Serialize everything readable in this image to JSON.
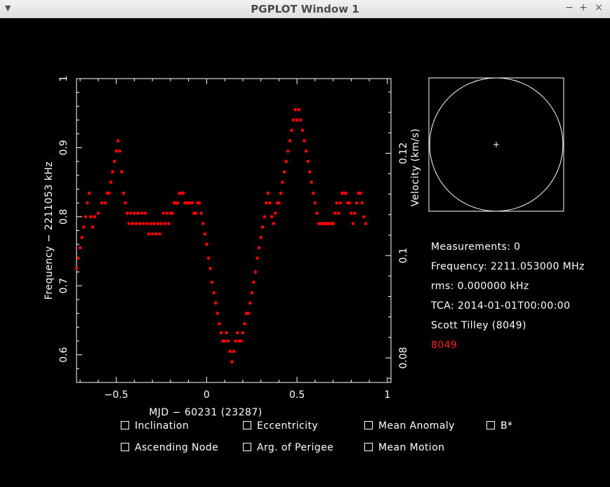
{
  "window": {
    "title": "PGPLOT Window 1",
    "menu_icon": "chevron-down-icon",
    "controls": [
      "−",
      "+",
      "×"
    ]
  },
  "colors": {
    "background": "#000000",
    "foreground": "#ffffff",
    "data": "#ff0000"
  },
  "chart_data": {
    "type": "scatter",
    "xlabel": "MJD − 60231 (23287)",
    "ylabel": "Frequency − 2211053 kHz",
    "y2label": "Velocity (km/s)",
    "xlim": [
      -0.72,
      1.02
    ],
    "ylim": [
      0.56,
      1.0
    ],
    "y2lim": [
      0.0752,
      0.1346
    ],
    "x_ticks": [
      {
        "v": -0.5,
        "label": "−0.5"
      },
      {
        "v": 0,
        "label": "0"
      },
      {
        "v": 0.5,
        "label": "0.5"
      },
      {
        "v": 1,
        "label": "1"
      }
    ],
    "y_ticks": [
      {
        "v": 0.6,
        "label": "0.6"
      },
      {
        "v": 0.7,
        "label": "0.7"
      },
      {
        "v": 0.8,
        "label": "0.8"
      },
      {
        "v": 0.9,
        "label": "0.9"
      },
      {
        "v": 1.0,
        "label": "1"
      }
    ],
    "y2_ticks": [
      {
        "v": 0.08,
        "label": "0.08"
      },
      {
        "v": 0.1,
        "label": "0.1"
      },
      {
        "v": 0.12,
        "label": "0.12"
      }
    ],
    "series": [
      {
        "color": "#ff0000",
        "points": [
          [
            -0.72,
            0.725
          ],
          [
            -0.71,
            0.74
          ],
          [
            -0.7,
            0.755
          ],
          [
            -0.69,
            0.77
          ],
          [
            -0.68,
            0.785
          ],
          [
            -0.67,
            0.8
          ],
          [
            -0.66,
            0.82
          ],
          [
            -0.65,
            0.834
          ],
          [
            -0.64,
            0.8
          ],
          [
            -0.63,
            0.785
          ],
          [
            -0.62,
            0.8
          ],
          [
            -0.6,
            0.805
          ],
          [
            -0.58,
            0.82
          ],
          [
            -0.56,
            0.82
          ],
          [
            -0.55,
            0.834
          ],
          [
            -0.54,
            0.834
          ],
          [
            -0.53,
            0.85
          ],
          [
            -0.52,
            0.865
          ],
          [
            -0.51,
            0.88
          ],
          [
            -0.5,
            0.895
          ],
          [
            -0.49,
            0.91
          ],
          [
            -0.48,
            0.895
          ],
          [
            -0.47,
            0.865
          ],
          [
            -0.46,
            0.834
          ],
          [
            -0.45,
            0.82
          ],
          [
            -0.44,
            0.805
          ],
          [
            -0.43,
            0.79
          ],
          [
            -0.42,
            0.805
          ],
          [
            -0.41,
            0.79
          ],
          [
            -0.4,
            0.805
          ],
          [
            -0.39,
            0.79
          ],
          [
            -0.38,
            0.805
          ],
          [
            -0.37,
            0.79
          ],
          [
            -0.36,
            0.805
          ],
          [
            -0.35,
            0.79
          ],
          [
            -0.34,
            0.805
          ],
          [
            -0.33,
            0.79
          ],
          [
            -0.32,
            0.775
          ],
          [
            -0.31,
            0.79
          ],
          [
            -0.3,
            0.775
          ],
          [
            -0.29,
            0.79
          ],
          [
            -0.28,
            0.775
          ],
          [
            -0.27,
            0.79
          ],
          [
            -0.26,
            0.775
          ],
          [
            -0.25,
            0.79
          ],
          [
            -0.24,
            0.805
          ],
          [
            -0.23,
            0.79
          ],
          [
            -0.22,
            0.805
          ],
          [
            -0.21,
            0.79
          ],
          [
            -0.2,
            0.805
          ],
          [
            -0.19,
            0.805
          ],
          [
            -0.18,
            0.82
          ],
          [
            -0.17,
            0.82
          ],
          [
            -0.16,
            0.82
          ],
          [
            -0.15,
            0.834
          ],
          [
            -0.14,
            0.834
          ],
          [
            -0.13,
            0.834
          ],
          [
            -0.12,
            0.82
          ],
          [
            -0.11,
            0.82
          ],
          [
            -0.1,
            0.82
          ],
          [
            -0.09,
            0.82
          ],
          [
            -0.08,
            0.82
          ],
          [
            -0.07,
            0.805
          ],
          [
            -0.06,
            0.805
          ],
          [
            -0.05,
            0.82
          ],
          [
            -0.04,
            0.82
          ],
          [
            -0.03,
            0.805
          ],
          [
            -0.02,
            0.79
          ],
          [
            -0.01,
            0.775
          ],
          [
            0.0,
            0.76
          ],
          [
            0.01,
            0.74
          ],
          [
            0.02,
            0.725
          ],
          [
            0.03,
            0.705
          ],
          [
            0.04,
            0.69
          ],
          [
            0.05,
            0.675
          ],
          [
            0.06,
            0.66
          ],
          [
            0.07,
            0.645
          ],
          [
            0.08,
            0.632
          ],
          [
            0.09,
            0.62
          ],
          [
            0.1,
            0.62
          ],
          [
            0.11,
            0.632
          ],
          [
            0.12,
            0.62
          ],
          [
            0.13,
            0.605
          ],
          [
            0.14,
            0.59
          ],
          [
            0.15,
            0.605
          ],
          [
            0.16,
            0.62
          ],
          [
            0.17,
            0.632
          ],
          [
            0.18,
            0.62
          ],
          [
            0.19,
            0.62
          ],
          [
            0.2,
            0.632
          ],
          [
            0.21,
            0.645
          ],
          [
            0.22,
            0.66
          ],
          [
            0.23,
            0.66
          ],
          [
            0.24,
            0.675
          ],
          [
            0.25,
            0.69
          ],
          [
            0.26,
            0.705
          ],
          [
            0.27,
            0.72
          ],
          [
            0.28,
            0.74
          ],
          [
            0.29,
            0.755
          ],
          [
            0.3,
            0.77
          ],
          [
            0.31,
            0.785
          ],
          [
            0.32,
            0.8
          ],
          [
            0.33,
            0.82
          ],
          [
            0.34,
            0.834
          ],
          [
            0.35,
            0.82
          ],
          [
            0.36,
            0.8
          ],
          [
            0.37,
            0.79
          ],
          [
            0.38,
            0.805
          ],
          [
            0.39,
            0.82
          ],
          [
            0.4,
            0.82
          ],
          [
            0.41,
            0.834
          ],
          [
            0.42,
            0.85
          ],
          [
            0.43,
            0.865
          ],
          [
            0.44,
            0.88
          ],
          [
            0.45,
            0.895
          ],
          [
            0.46,
            0.91
          ],
          [
            0.47,
            0.925
          ],
          [
            0.48,
            0.94
          ],
          [
            0.49,
            0.955
          ],
          [
            0.5,
            0.94
          ],
          [
            0.51,
            0.955
          ],
          [
            0.52,
            0.94
          ],
          [
            0.53,
            0.925
          ],
          [
            0.54,
            0.91
          ],
          [
            0.55,
            0.895
          ],
          [
            0.56,
            0.88
          ],
          [
            0.57,
            0.865
          ],
          [
            0.58,
            0.85
          ],
          [
            0.59,
            0.834
          ],
          [
            0.6,
            0.82
          ],
          [
            0.61,
            0.805
          ],
          [
            0.62,
            0.79
          ],
          [
            0.63,
            0.79
          ],
          [
            0.64,
            0.79
          ],
          [
            0.65,
            0.79
          ],
          [
            0.66,
            0.79
          ],
          [
            0.67,
            0.79
          ],
          [
            0.68,
            0.79
          ],
          [
            0.69,
            0.79
          ],
          [
            0.7,
            0.79
          ],
          [
            0.71,
            0.805
          ],
          [
            0.72,
            0.82
          ],
          [
            0.73,
            0.805
          ],
          [
            0.74,
            0.82
          ],
          [
            0.75,
            0.834
          ],
          [
            0.76,
            0.834
          ],
          [
            0.77,
            0.834
          ],
          [
            0.78,
            0.82
          ],
          [
            0.79,
            0.82
          ],
          [
            0.8,
            0.805
          ],
          [
            0.81,
            0.79
          ],
          [
            0.82,
            0.805
          ],
          [
            0.83,
            0.82
          ],
          [
            0.84,
            0.834
          ],
          [
            0.85,
            0.834
          ],
          [
            0.86,
            0.82
          ],
          [
            0.87,
            0.8
          ],
          [
            0.88,
            0.79
          ]
        ]
      }
    ]
  },
  "axis_labels": {
    "x": "MJD − 60231 (23287)",
    "y_left": "Frequency − 2211053 kHz",
    "y_right": "Velocity (km/s)"
  },
  "info": {
    "measurements": "Measurements: 0",
    "frequency": "Frequency: 2211.053000 MHz",
    "rms": "rms: 0.000000 kHz",
    "tca": "TCA: 2014-01-01T00:00:00",
    "satellite": "Scott Tilley (8049)",
    "site": "8049"
  },
  "checkboxes": [
    {
      "label": "Inclination",
      "checked": false
    },
    {
      "label": "Eccentricity",
      "checked": false
    },
    {
      "label": "Mean Anomaly",
      "checked": false
    },
    {
      "label": "B*",
      "checked": false
    },
    {
      "label": "Ascending Node",
      "checked": false
    },
    {
      "label": "Arg. of Perigee",
      "checked": false
    },
    {
      "label": "Mean Motion",
      "checked": false
    }
  ]
}
